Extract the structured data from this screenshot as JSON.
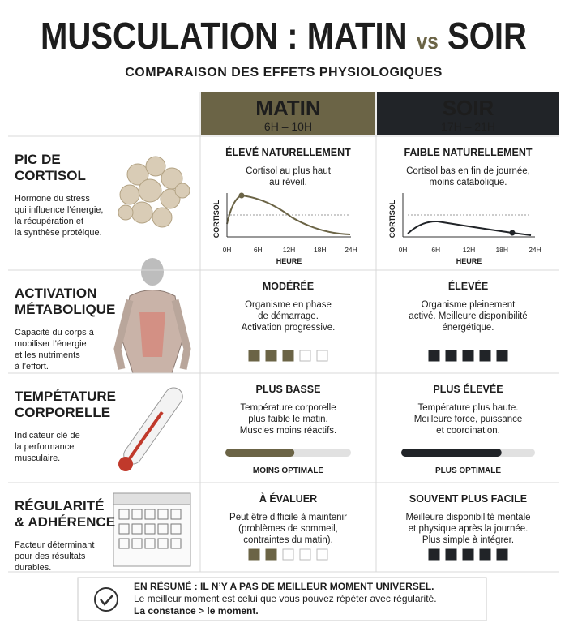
{
  "header": {
    "title": "MUSCULATION : MATIN",
    "title_vs": "vs",
    "title_end": "SOIR",
    "subtitle": "COMPARAISON DES EFFETS PHYSIOLOGIQUES"
  },
  "columns": [
    {
      "name": "MATIN",
      "hours": "6H – 10H",
      "color": "#6b6446"
    },
    {
      "name": "SOIR",
      "hours": "17H – 21H",
      "color": "#212428"
    }
  ],
  "rows": [
    {
      "title": [
        "PIC DE",
        "CORTISOL"
      ],
      "description": [
        "Hormone du stress",
        "qui influence l’énergie,",
        "la récupération et",
        "la synthèse protéique."
      ],
      "chart": {
        "y_label": "CORTISOL",
        "x_label": "HEURE",
        "xticks": [
          "0H",
          "6H",
          "12H",
          "18H",
          "24H"
        ]
      },
      "cells": [
        {
          "heading": "ÉLEVÉ NATURELLEMENT",
          "text": [
            "Cortisol au plus haut",
            "au réveil."
          ]
        },
        {
          "heading": "FAIBLE NATURELLEMENT",
          "text": [
            "Cortisol bas en fin de journée,",
            "moins catabolique."
          ]
        }
      ]
    },
    {
      "title": [
        "ACTIVATION",
        "MÉTABOLIQUE"
      ],
      "description": [
        "Capacité du corps à",
        "mobiliser l’énergie",
        "et les nutriments",
        "à l’effort."
      ],
      "cells": [
        {
          "heading": "MODÉRÉE",
          "text": [
            "Organisme en phase",
            "de démarrage.",
            "Activation progressive."
          ],
          "rating": 3,
          "rating_max": 5
        },
        {
          "heading": "ÉLEVÉE",
          "text": [
            "Organisme pleinement",
            "activé. Meilleure disponibilité",
            "énergétique."
          ],
          "rating": 5,
          "rating_max": 5
        }
      ]
    },
    {
      "title": [
        "TEMPÉTATURE",
        "CORPORELLE"
      ],
      "description": [
        "Indicateur clé de",
        "la performance",
        "musculaire."
      ],
      "cells": [
        {
          "heading": "PLUS BASSE",
          "text": [
            "Température corporelle",
            "plus faible le matin.",
            "Muscles moins réactifs."
          ],
          "level": 55,
          "level_max": 100,
          "level_label": "MOINS OPTIMALE"
        },
        {
          "heading": "PLUS ÉLEVÉE",
          "text": [
            "Température plus haute.",
            "Meilleure force, puissance",
            "et coordination."
          ],
          "level": 75,
          "level_max": 100,
          "level_label": "PLUS OPTIMALE"
        }
      ]
    },
    {
      "title": [
        "RÉGULARITÉ",
        "& ADHÉRENCE"
      ],
      "description": [
        "Facteur déterminant",
        "pour des résultats",
        "durables."
      ],
      "cells": [
        {
          "heading": "À ÉVALUER",
          "text": [
            "Peut être difficile à maintenir",
            "(problèmes de sommeil,",
            "contraintes du matin)."
          ],
          "rating": 2,
          "rating_max": 5
        },
        {
          "heading": "SOUVENT PLUS FACILE",
          "text": [
            "Meilleure disponibilité mentale",
            "et physique après la journée.",
            "Plus simple à intégrer."
          ],
          "rating": 5,
          "rating_max": 5
        }
      ]
    }
  ],
  "summary": {
    "lines": [
      "EN RÉSUMÉ : IL N’Y A PAS DE MEILLEUR MOMENT UNIVERSEL.",
      "Le meilleur moment est celui que vous pouvez répéter avec régularité.",
      "La constance > le moment."
    ]
  }
}
